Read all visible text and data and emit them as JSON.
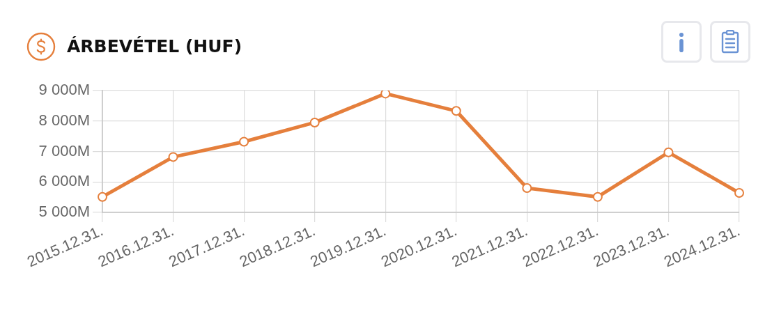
{
  "chart_data": {
    "type": "line",
    "title": "ÁRBEVÉTEL (HUF)",
    "categories": [
      "2015.12.31.",
      "2016.12.31.",
      "2017.12.31.",
      "2018.12.31.",
      "2019.12.31.",
      "2020.12.31.",
      "2021.12.31.",
      "2022.12.31.",
      "2023.12.31.",
      "2024.12.31."
    ],
    "values": [
      5510,
      6820,
      7320,
      7950,
      8900,
      8330,
      5800,
      5510,
      6970,
      5640
    ],
    "color": "#e57f3c",
    "ylim": [
      5000,
      9000
    ],
    "yticks": [
      {
        "value": 5000,
        "label": "5 000M"
      },
      {
        "value": 6000,
        "label": "6 000M"
      },
      {
        "value": 7000,
        "label": "7 000M"
      },
      {
        "value": 8000,
        "label": "8 000M"
      },
      {
        "value": 9000,
        "label": "9 000M"
      }
    ],
    "grid": true,
    "marker": "circle",
    "line_style": "solid"
  }
}
